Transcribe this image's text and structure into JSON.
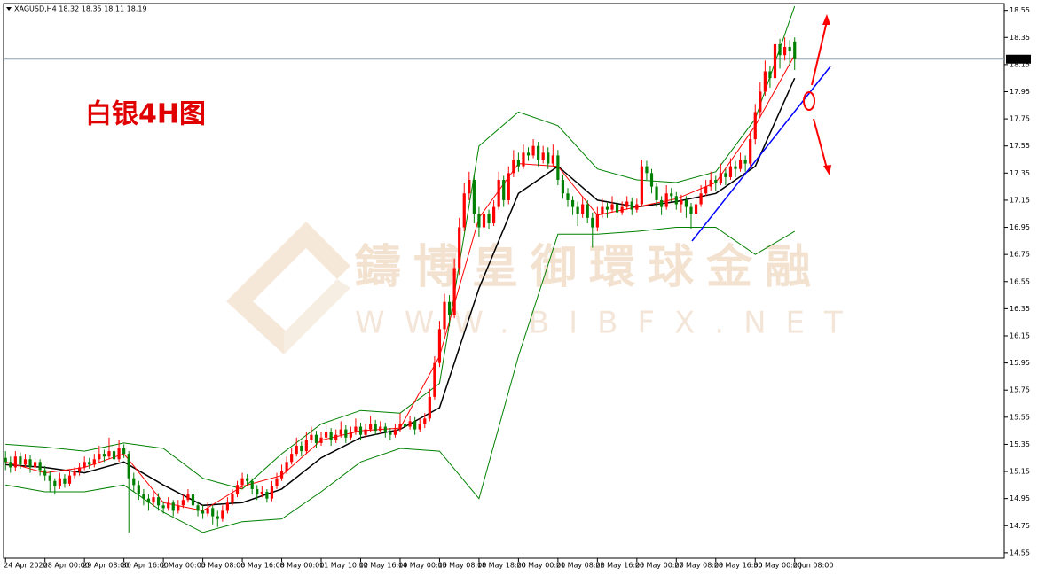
{
  "chart_data": {
    "type": "candlestick",
    "subtitle": "XAGUSD,H4 18.32 18.35 18.11 18.19",
    "title": "白银4H图",
    "watermark": [
      "鑄博皇御環球金融",
      "WWW.BIBFX.NET"
    ],
    "up_color": "#ff0000",
    "down_color": "#008000",
    "current_price": 18.19,
    "xlim": [
      -0.4,
      202.5
    ],
    "ylim": [
      14.51,
      18.6
    ],
    "yticks": [
      18.55,
      18.35,
      18.15,
      17.95,
      17.75,
      17.55,
      17.35,
      17.15,
      16.95,
      16.75,
      16.55,
      16.35,
      16.15,
      15.95,
      15.75,
      15.55,
      15.35,
      15.15,
      14.95,
      14.75,
      14.55
    ],
    "xticks": [
      {
        "value": 0,
        "label": "24 Apr 2020"
      },
      {
        "value": 8,
        "label": "28 Apr 00:00"
      },
      {
        "value": 16,
        "label": "29 Apr 08:00"
      },
      {
        "value": 24,
        "label": "30 Apr 16:00"
      },
      {
        "value": 32,
        "label": "2 May 00:00"
      },
      {
        "value": 40,
        "label": "5 May 08:00"
      },
      {
        "value": 48,
        "label": "6 May 16:00"
      },
      {
        "value": 56,
        "label": "8 May 00:00"
      },
      {
        "value": 64,
        "label": "11 May 10:00"
      },
      {
        "value": 72,
        "label": "12 May 16:00"
      },
      {
        "value": 80,
        "label": "14 May 00:00"
      },
      {
        "value": 88,
        "label": "15 May 08:00"
      },
      {
        "value": 96,
        "label": "18 May 18:00"
      },
      {
        "value": 104,
        "label": "20 May 00:00"
      },
      {
        "value": 112,
        "label": "21 May 08:00"
      },
      {
        "value": 120,
        "label": "22 May 16:00"
      },
      {
        "value": 128,
        "label": "26 May 00:00"
      },
      {
        "value": 136,
        "label": "27 May 08:00"
      },
      {
        "value": 144,
        "label": "28 May 16:00"
      },
      {
        "value": 152,
        "label": "30 May 00:00"
      },
      {
        "value": 160,
        "label": "2 Jun 08:00"
      }
    ],
    "ohlc": [
      [
        15.25,
        15.3,
        15.16,
        15.22
      ],
      [
        15.22,
        15.26,
        15.14,
        15.18
      ],
      [
        15.18,
        15.3,
        15.15,
        15.26
      ],
      [
        15.26,
        15.29,
        15.17,
        15.2
      ],
      [
        15.2,
        15.28,
        15.18,
        15.24
      ],
      [
        15.24,
        15.27,
        15.14,
        15.18
      ],
      [
        15.18,
        15.25,
        15.15,
        15.22
      ],
      [
        15.22,
        15.24,
        15.12,
        15.16
      ],
      [
        15.16,
        15.19,
        15.08,
        15.12
      ],
      [
        15.12,
        15.15,
        15.0,
        15.08
      ],
      [
        15.08,
        15.1,
        14.98,
        15.04
      ],
      [
        15.04,
        15.14,
        15.02,
        15.1
      ],
      [
        15.1,
        15.13,
        15.03,
        15.06
      ],
      [
        15.06,
        15.16,
        15.04,
        15.12
      ],
      [
        15.12,
        15.18,
        15.1,
        15.15
      ],
      [
        15.15,
        15.21,
        15.12,
        15.18
      ],
      [
        15.18,
        15.26,
        15.16,
        15.22
      ],
      [
        15.22,
        15.25,
        15.17,
        15.2
      ],
      [
        15.2,
        15.28,
        15.18,
        15.24
      ],
      [
        15.24,
        15.34,
        15.22,
        15.28
      ],
      [
        15.28,
        15.31,
        15.22,
        15.26
      ],
      [
        15.26,
        15.4,
        15.24,
        15.3
      ],
      [
        15.3,
        15.33,
        15.2,
        15.24
      ],
      [
        15.24,
        15.38,
        15.22,
        15.32
      ],
      [
        15.32,
        15.35,
        15.25,
        15.28
      ],
      [
        15.28,
        15.3,
        14.7,
        15.1
      ],
      [
        15.1,
        15.14,
        15.0,
        15.05
      ],
      [
        15.05,
        15.08,
        14.94,
        14.98
      ],
      [
        14.98,
        15.02,
        14.9,
        14.95
      ],
      [
        14.95,
        14.98,
        14.86,
        14.92
      ],
      [
        14.92,
        15.0,
        14.89,
        14.96
      ],
      [
        14.96,
        14.99,
        14.86,
        14.9
      ],
      [
        14.9,
        14.93,
        14.84,
        14.88
      ],
      [
        14.88,
        14.96,
        14.86,
        14.92
      ],
      [
        14.92,
        14.94,
        14.82,
        14.86
      ],
      [
        14.86,
        14.94,
        14.84,
        14.9
      ],
      [
        14.9,
        14.98,
        14.88,
        14.94
      ],
      [
        14.94,
        15.02,
        14.92,
        14.98
      ],
      [
        14.98,
        15.01,
        14.86,
        14.9
      ],
      [
        14.9,
        14.93,
        14.82,
        14.86
      ],
      [
        14.86,
        14.9,
        14.8,
        14.84
      ],
      [
        14.84,
        14.92,
        14.82,
        14.88
      ],
      [
        14.88,
        14.9,
        14.76,
        14.82
      ],
      [
        14.82,
        14.86,
        14.74,
        14.8
      ],
      [
        14.8,
        14.9,
        14.78,
        14.86
      ],
      [
        14.86,
        14.96,
        14.84,
        14.92
      ],
      [
        14.92,
        15.02,
        14.9,
        14.98
      ],
      [
        14.98,
        15.08,
        14.96,
        15.05
      ],
      [
        15.05,
        15.14,
        15.02,
        15.1
      ],
      [
        15.1,
        15.13,
        15.04,
        15.08
      ],
      [
        15.08,
        15.1,
        14.98,
        15.02
      ],
      [
        15.02,
        15.05,
        14.94,
        14.98
      ],
      [
        14.98,
        15.04,
        14.96,
        15.0
      ],
      [
        15.0,
        15.02,
        14.92,
        14.95
      ],
      [
        14.95,
        15.08,
        14.93,
        15.04
      ],
      [
        15.04,
        15.14,
        15.02,
        15.1
      ],
      [
        15.1,
        15.2,
        15.08,
        15.15
      ],
      [
        15.15,
        15.26,
        15.13,
        15.22
      ],
      [
        15.22,
        15.32,
        15.2,
        15.28
      ],
      [
        15.28,
        15.4,
        15.26,
        15.34
      ],
      [
        15.34,
        15.37,
        15.26,
        15.3
      ],
      [
        15.3,
        15.44,
        15.28,
        15.38
      ],
      [
        15.38,
        15.48,
        15.36,
        15.42
      ],
      [
        15.42,
        15.45,
        15.32,
        15.36
      ],
      [
        15.36,
        15.44,
        15.34,
        15.4
      ],
      [
        15.4,
        15.5,
        15.38,
        15.44
      ],
      [
        15.44,
        15.47,
        15.34,
        15.38
      ],
      [
        15.38,
        15.46,
        15.36,
        15.42
      ],
      [
        15.42,
        15.52,
        15.4,
        15.46
      ],
      [
        15.46,
        15.49,
        15.36,
        15.4
      ],
      [
        15.4,
        15.48,
        15.38,
        15.44
      ],
      [
        15.44,
        15.54,
        15.42,
        15.48
      ],
      [
        15.48,
        15.51,
        15.38,
        15.42
      ],
      [
        15.42,
        15.5,
        15.4,
        15.46
      ],
      [
        15.46,
        15.56,
        15.44,
        15.5
      ],
      [
        15.5,
        15.53,
        15.42,
        15.45
      ],
      [
        15.45,
        15.52,
        15.43,
        15.48
      ],
      [
        15.48,
        15.51,
        15.4,
        15.44
      ],
      [
        15.44,
        15.47,
        15.38,
        15.42
      ],
      [
        15.42,
        15.5,
        15.4,
        15.46
      ],
      [
        15.46,
        15.58,
        15.44,
        15.5
      ],
      [
        15.5,
        15.53,
        15.44,
        15.48
      ],
      [
        15.48,
        15.56,
        15.46,
        15.52
      ],
      [
        15.52,
        15.55,
        15.42,
        15.46
      ],
      [
        15.46,
        15.54,
        15.44,
        15.5
      ],
      [
        15.5,
        15.58,
        15.47,
        15.54
      ],
      [
        15.54,
        15.76,
        15.52,
        15.7
      ],
      [
        15.7,
        16.0,
        15.68,
        15.95
      ],
      [
        15.95,
        16.26,
        15.92,
        16.2
      ],
      [
        16.2,
        16.46,
        16.16,
        16.4
      ],
      [
        16.4,
        16.45,
        16.22,
        16.3
      ],
      [
        16.3,
        16.72,
        16.28,
        16.65
      ],
      [
        16.65,
        17.02,
        16.6,
        16.95
      ],
      [
        16.95,
        17.28,
        16.92,
        17.2
      ],
      [
        17.2,
        17.36,
        17.15,
        17.3
      ],
      [
        17.3,
        17.34,
        16.98,
        17.05
      ],
      [
        17.05,
        17.1,
        16.88,
        16.95
      ],
      [
        16.95,
        17.12,
        16.92,
        17.05
      ],
      [
        17.05,
        17.08,
        16.94,
        16.98
      ],
      [
        16.98,
        17.15,
        16.96,
        17.1
      ],
      [
        17.1,
        17.36,
        17.08,
        17.3
      ],
      [
        17.3,
        17.33,
        17.1,
        17.15
      ],
      [
        17.15,
        17.4,
        17.12,
        17.35
      ],
      [
        17.35,
        17.52,
        17.32,
        17.45
      ],
      [
        17.45,
        17.5,
        17.36,
        17.4
      ],
      [
        17.4,
        17.56,
        17.38,
        17.5
      ],
      [
        17.5,
        17.54,
        17.44,
        17.48
      ],
      [
        17.48,
        17.6,
        17.46,
        17.55
      ],
      [
        17.55,
        17.58,
        17.4,
        17.45
      ],
      [
        17.45,
        17.55,
        17.42,
        17.5
      ],
      [
        17.5,
        17.54,
        17.38,
        17.42
      ],
      [
        17.42,
        17.56,
        17.4,
        17.48
      ],
      [
        17.48,
        17.52,
        17.26,
        17.3
      ],
      [
        17.3,
        17.34,
        17.16,
        17.2
      ],
      [
        17.2,
        17.24,
        17.1,
        17.15
      ],
      [
        17.15,
        17.18,
        17.04,
        17.1
      ],
      [
        17.1,
        17.14,
        16.96,
        17.05
      ],
      [
        17.05,
        17.18,
        17.02,
        17.12
      ],
      [
        17.12,
        17.15,
        16.98,
        17.02
      ],
      [
        17.02,
        17.06,
        16.8,
        16.95
      ],
      [
        16.95,
        17.1,
        16.92,
        17.05
      ],
      [
        17.05,
        17.16,
        17.02,
        17.1
      ],
      [
        17.1,
        17.13,
        17.02,
        17.08
      ],
      [
        17.08,
        17.18,
        17.06,
        17.12
      ],
      [
        17.12,
        17.15,
        17.02,
        17.06
      ],
      [
        17.06,
        17.14,
        17.04,
        17.1
      ],
      [
        17.1,
        17.18,
        17.08,
        17.14
      ],
      [
        17.14,
        17.17,
        17.04,
        17.08
      ],
      [
        17.08,
        17.16,
        17.06,
        17.12
      ],
      [
        17.12,
        17.45,
        17.1,
        17.4
      ],
      [
        17.4,
        17.44,
        17.3,
        17.35
      ],
      [
        17.35,
        17.38,
        17.2,
        17.25
      ],
      [
        17.25,
        17.28,
        17.1,
        17.15
      ],
      [
        17.15,
        17.18,
        17.04,
        17.1
      ],
      [
        17.1,
        17.26,
        17.08,
        17.2
      ],
      [
        17.2,
        17.24,
        17.14,
        17.18
      ],
      [
        17.18,
        17.21,
        17.08,
        17.12
      ],
      [
        17.12,
        17.19,
        17.06,
        17.15
      ],
      [
        17.15,
        17.18,
        17.02,
        17.1
      ],
      [
        17.1,
        17.13,
        16.94,
        17.05
      ],
      [
        17.05,
        17.18,
        17.02,
        17.12
      ],
      [
        17.12,
        17.26,
        17.1,
        17.2
      ],
      [
        17.2,
        17.3,
        17.18,
        17.25
      ],
      [
        17.25,
        17.36,
        17.22,
        17.3
      ],
      [
        17.3,
        17.33,
        17.22,
        17.28
      ],
      [
        17.28,
        17.42,
        17.26,
        17.35
      ],
      [
        17.35,
        17.38,
        17.26,
        17.32
      ],
      [
        17.32,
        17.46,
        17.3,
        17.4
      ],
      [
        17.4,
        17.44,
        17.32,
        17.38
      ],
      [
        17.38,
        17.5,
        17.36,
        17.45
      ],
      [
        17.45,
        17.48,
        17.36,
        17.42
      ],
      [
        17.42,
        17.66,
        17.4,
        17.6
      ],
      [
        17.6,
        17.86,
        17.56,
        17.8
      ],
      [
        17.8,
        18.02,
        17.76,
        17.95
      ],
      [
        17.95,
        18.18,
        17.92,
        18.1
      ],
      [
        18.1,
        18.14,
        17.98,
        18.05
      ],
      [
        18.05,
        18.38,
        18.02,
        18.3
      ],
      [
        18.3,
        18.34,
        18.12,
        18.22
      ],
      [
        18.22,
        18.35,
        18.18,
        18.28
      ],
      [
        18.28,
        18.33,
        18.14,
        18.25
      ],
      [
        18.32,
        18.35,
        18.11,
        18.19
      ]
    ],
    "indicator_x": [
      0,
      8,
      16,
      24,
      32,
      40,
      48,
      56,
      64,
      72,
      80,
      88,
      96,
      104,
      112,
      120,
      128,
      136,
      144,
      152,
      160
    ],
    "indicators": [
      {
        "color": "#008000",
        "values": [
          15.35,
          15.33,
          15.3,
          15.36,
          15.32,
          15.1,
          15.02,
          15.28,
          15.5,
          15.6,
          15.58,
          15.8,
          17.55,
          17.8,
          17.7,
          17.38,
          17.3,
          17.28,
          17.36,
          17.75,
          18.58
        ]
      },
      {
        "color": "#008000",
        "values": [
          15.05,
          15.0,
          15.0,
          15.05,
          14.85,
          14.7,
          14.78,
          14.8,
          15.0,
          15.22,
          15.32,
          15.3,
          14.95,
          16.0,
          16.9,
          16.9,
          16.92,
          16.95,
          16.95,
          16.75,
          16.92
        ]
      },
      {
        "color": "#000000",
        "values": [
          15.2,
          15.18,
          15.14,
          15.22,
          15.05,
          14.9,
          14.92,
          15.02,
          15.25,
          15.4,
          15.46,
          15.62,
          16.5,
          17.2,
          17.4,
          17.15,
          17.1,
          17.14,
          17.2,
          17.4,
          18.05
        ]
      },
      {
        "color": "#ff0000",
        "values": [
          15.22,
          15.14,
          15.18,
          15.28,
          14.92,
          14.86,
          15.04,
          15.12,
          15.38,
          15.45,
          15.47,
          16.0,
          17.02,
          17.42,
          17.4,
          17.04,
          17.1,
          17.16,
          17.28,
          17.7,
          18.22
        ]
      }
    ]
  }
}
